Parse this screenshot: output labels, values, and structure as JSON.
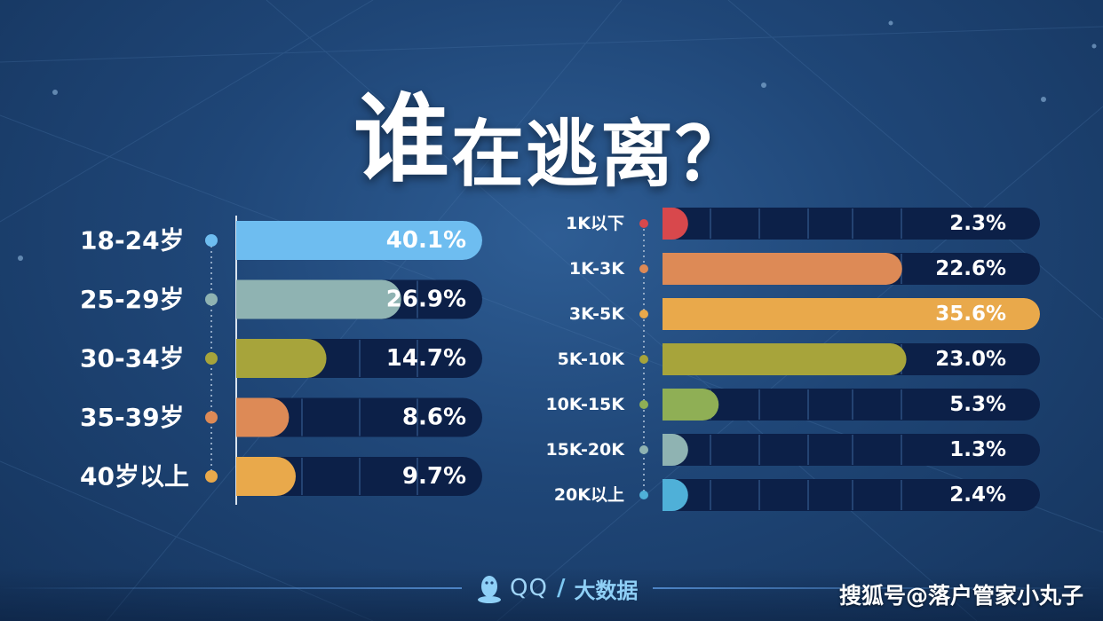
{
  "title": {
    "char1": "谁",
    "rest": "在逃离？"
  },
  "footer": {
    "brand": "QQ",
    "slash": "/",
    "bigdata": "大数据"
  },
  "watermark": "搜狐号@落户管家小丸子",
  "colors": {
    "track": "#0c2048",
    "divider": "#2d4f80",
    "dot_line": "#8fa7c4"
  },
  "chart_data": [
    {
      "type": "bar",
      "orientation": "horizontal",
      "title": "",
      "categories": [
        "18-24岁",
        "25-29岁",
        "30-34岁",
        "35-39岁",
        "40岁以上"
      ],
      "values": [
        40.1,
        26.9,
        14.7,
        8.6,
        9.7
      ],
      "value_labels": [
        "40.1%",
        "26.9%",
        "14.7%",
        "8.6%",
        "9.7%"
      ],
      "colors": [
        "#6ebdf0",
        "#8fb3b2",
        "#a7a43b",
        "#dd8a56",
        "#e9a94b"
      ],
      "xlim": [
        0,
        40.1
      ],
      "grid": true
    },
    {
      "type": "bar",
      "orientation": "horizontal",
      "title": "",
      "categories": [
        "1K以下",
        "1K-3K",
        "3K-5K",
        "5K-10K",
        "10K-15K",
        "15K-20K",
        "20K以上"
      ],
      "values": [
        2.3,
        22.6,
        35.6,
        23.0,
        5.3,
        1.3,
        2.4
      ],
      "value_labels": [
        "2.3%",
        "22.6%",
        "35.6%",
        "23.0%",
        "5.3%",
        "1.3%",
        "2.4%"
      ],
      "colors": [
        "#d8484c",
        "#dd8a56",
        "#e9a94b",
        "#a7a43b",
        "#8faf55",
        "#8fb3b2",
        "#4fb0d8"
      ],
      "xlim": [
        0,
        35.6
      ],
      "grid": true
    }
  ]
}
